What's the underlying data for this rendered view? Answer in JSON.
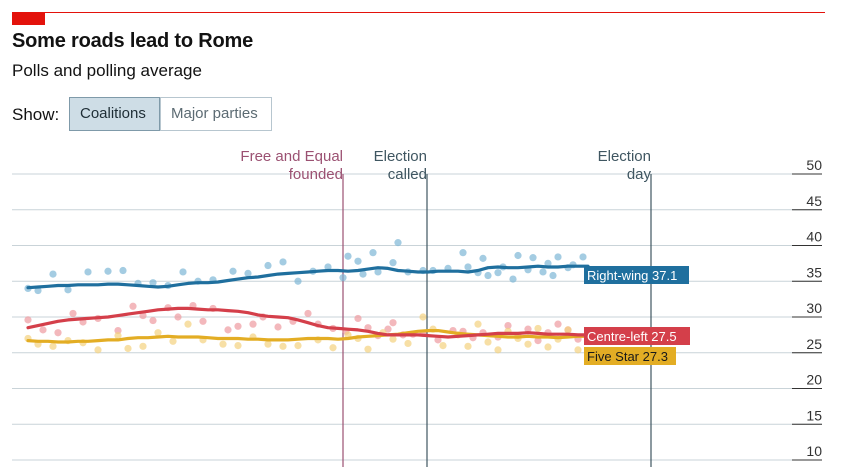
{
  "header": {
    "title": "Some roads lead to Rome",
    "subtitle": "Polls and polling average"
  },
  "controls": {
    "show_label": "Show:",
    "options": [
      "Coalitions",
      "Major parties"
    ],
    "selected": "Coalitions"
  },
  "chart_data": {
    "type": "line",
    "title": "Some roads lead to Rome",
    "subtitle": "Polls and polling average",
    "x": [
      0,
      10,
      20,
      30,
      40,
      50,
      60,
      70,
      80,
      90,
      100,
      110,
      120,
      130,
      140,
      150,
      160,
      170,
      180,
      190,
      200,
      210,
      220,
      230,
      240,
      250,
      260,
      270,
      280,
      290,
      300,
      310,
      320,
      330,
      340,
      350,
      360,
      370,
      380,
      390,
      400,
      410,
      420,
      430,
      440,
      450,
      460,
      470,
      480,
      490,
      500,
      510,
      520,
      530,
      540,
      550,
      560
    ],
    "ylim": [
      10,
      50
    ],
    "yticks": [
      10,
      15,
      20,
      25,
      30,
      35,
      40,
      45,
      50
    ],
    "grid": true,
    "events": [
      {
        "x": 315,
        "label": [
          "Free and Equal",
          "founded"
        ],
        "color": "#9b5172"
      },
      {
        "x": 399,
        "label": [
          "Election",
          "called"
        ],
        "color": "#3f5661"
      },
      {
        "x": 623,
        "label": [
          "Election",
          "day"
        ],
        "color": "#3f5661"
      }
    ],
    "series": [
      {
        "name": "Right-wing",
        "color": "#1f6f9e",
        "dot_color": "#7eb6d5",
        "end_label": "Right-wing 37.1",
        "values": [
          34.1,
          34.2,
          34.3,
          34.4,
          34.4,
          34.5,
          34.5,
          34.5,
          34.6,
          34.6,
          34.5,
          34.4,
          34.3,
          34.2,
          34.3,
          34.5,
          34.7,
          34.8,
          34.8,
          34.9,
          35.1,
          35.3,
          35.5,
          35.6,
          35.8,
          36.0,
          36.1,
          36.2,
          36.3,
          36.4,
          36.5,
          36.5,
          36.4,
          36.5,
          36.7,
          36.9,
          36.8,
          36.5,
          36.4,
          36.3,
          36.3,
          36.4,
          36.4,
          36.4,
          36.3,
          36.5,
          36.9,
          37.0,
          36.9,
          36.9,
          37.0,
          37.1,
          37.0,
          37.0,
          37.1,
          37.1,
          37.1
        ]
      },
      {
        "name": "Centre-left",
        "color": "#d43f4a",
        "dot_color": "#ee9aa0",
        "end_label": "Centre-left 27.5",
        "values": [
          28.5,
          28.8,
          29.1,
          29.4,
          29.6,
          29.7,
          29.8,
          29.9,
          30.0,
          30.2,
          30.4,
          30.6,
          30.8,
          31.0,
          31.1,
          31.2,
          31.2,
          31.1,
          31.0,
          31.0,
          30.9,
          30.8,
          30.6,
          30.3,
          30.1,
          30.0,
          29.9,
          29.6,
          29.2,
          28.8,
          28.5,
          28.4,
          28.3,
          28.2,
          28.0,
          27.7,
          27.5,
          27.5,
          27.5,
          27.5,
          27.4,
          27.3,
          27.2,
          27.3,
          27.4,
          27.5,
          27.6,
          27.7,
          27.7,
          27.7,
          27.8,
          27.7,
          27.6,
          27.6,
          27.6,
          27.5,
          27.5
        ]
      },
      {
        "name": "Five Star",
        "color": "#e3ad24",
        "dot_color": "#f4d27f",
        "end_label": "Five Star 27.3",
        "values": [
          26.7,
          26.6,
          26.6,
          26.5,
          26.5,
          26.6,
          26.6,
          26.7,
          26.8,
          26.8,
          27.0,
          27.1,
          27.1,
          27.2,
          27.3,
          27.2,
          27.2,
          27.2,
          27.1,
          27.0,
          27.0,
          27.0,
          26.9,
          26.9,
          26.8,
          26.8,
          26.8,
          26.9,
          27.0,
          27.0,
          27.0,
          26.9,
          27.0,
          27.2,
          27.3,
          27.4,
          27.5,
          27.6,
          27.8,
          28.0,
          28.1,
          28.1,
          27.9,
          27.7,
          27.6,
          27.5,
          27.4,
          27.3,
          27.2,
          27.2,
          27.3,
          27.2,
          27.2,
          27.1,
          27.2,
          27.3,
          27.3
        ]
      }
    ],
    "polls": {
      "Right-wing": [
        [
          0,
          34.0
        ],
        [
          10,
          33.7
        ],
        [
          25,
          36.0
        ],
        [
          40,
          33.8
        ],
        [
          60,
          36.3
        ],
        [
          80,
          36.4
        ],
        [
          95,
          36.5
        ],
        [
          110,
          34.7
        ],
        [
          125,
          34.8
        ],
        [
          140,
          34.4
        ],
        [
          155,
          36.3
        ],
        [
          170,
          35.0
        ],
        [
          185,
          35.2
        ],
        [
          205,
          36.4
        ],
        [
          220,
          36.1
        ],
        [
          240,
          37.2
        ],
        [
          255,
          37.7
        ],
        [
          270,
          35.0
        ],
        [
          285,
          36.4
        ],
        [
          300,
          37.0
        ],
        [
          315,
          35.5
        ],
        [
          320,
          38.5
        ],
        [
          330,
          37.8
        ],
        [
          335,
          36.0
        ],
        [
          345,
          39.0
        ],
        [
          350,
          36.3
        ],
        [
          365,
          37.6
        ],
        [
          370,
          40.4
        ],
        [
          380,
          36.3
        ],
        [
          395,
          36.5
        ],
        [
          405,
          36.5
        ],
        [
          420,
          36.8
        ],
        [
          435,
          39.0
        ],
        [
          440,
          37.0
        ],
        [
          450,
          36.2
        ],
        [
          455,
          38.2
        ],
        [
          460,
          35.8
        ],
        [
          470,
          36.2
        ],
        [
          475,
          37.0
        ],
        [
          485,
          35.3
        ],
        [
          490,
          38.6
        ],
        [
          500,
          36.6
        ],
        [
          505,
          38.3
        ],
        [
          515,
          36.3
        ],
        [
          520,
          37.5
        ],
        [
          525,
          35.8
        ],
        [
          530,
          38.4
        ],
        [
          540,
          36.9
        ],
        [
          545,
          37.3
        ],
        [
          555,
          38.4
        ],
        [
          560,
          35.1
        ]
      ],
      "Centre-left": [
        [
          0,
          29.6
        ],
        [
          15,
          28.2
        ],
        [
          30,
          27.8
        ],
        [
          45,
          30.5
        ],
        [
          55,
          29.3
        ],
        [
          70,
          29.8
        ],
        [
          90,
          28.1
        ],
        [
          105,
          31.5
        ],
        [
          115,
          30.2
        ],
        [
          125,
          29.5
        ],
        [
          140,
          31.3
        ],
        [
          150,
          30.0
        ],
        [
          165,
          31.6
        ],
        [
          175,
          29.4
        ],
        [
          185,
          31.2
        ],
        [
          200,
          28.2
        ],
        [
          210,
          28.7
        ],
        [
          225,
          29.0
        ],
        [
          235,
          30.0
        ],
        [
          250,
          28.6
        ],
        [
          265,
          29.4
        ],
        [
          280,
          30.5
        ],
        [
          290,
          29.0
        ],
        [
          305,
          28.4
        ],
        [
          318,
          28.0
        ],
        [
          330,
          29.8
        ],
        [
          340,
          28.5
        ],
        [
          350,
          27.4
        ],
        [
          360,
          28.3
        ],
        [
          365,
          29.2
        ],
        [
          375,
          27.5
        ],
        [
          385,
          27.6
        ],
        [
          395,
          27.7
        ],
        [
          410,
          26.8
        ],
        [
          425,
          28.1
        ],
        [
          435,
          28.0
        ],
        [
          445,
          27.1
        ],
        [
          455,
          27.8
        ],
        [
          470,
          27.2
        ],
        [
          480,
          28.8
        ],
        [
          490,
          27.4
        ],
        [
          500,
          28.3
        ],
        [
          510,
          26.7
        ],
        [
          520,
          27.8
        ],
        [
          530,
          29.0
        ],
        [
          540,
          28.2
        ],
        [
          550,
          26.9
        ],
        [
          560,
          27.6
        ]
      ],
      "Five Star": [
        [
          0,
          27.0
        ],
        [
          10,
          26.2
        ],
        [
          25,
          25.9
        ],
        [
          40,
          26.7
        ],
        [
          55,
          26.4
        ],
        [
          70,
          25.4
        ],
        [
          90,
          27.4
        ],
        [
          100,
          25.6
        ],
        [
          115,
          25.9
        ],
        [
          130,
          27.8
        ],
        [
          145,
          26.6
        ],
        [
          160,
          29.0
        ],
        [
          175,
          26.8
        ],
        [
          195,
          26.2
        ],
        [
          210,
          26.0
        ],
        [
          225,
          27.2
        ],
        [
          240,
          26.2
        ],
        [
          255,
          25.9
        ],
        [
          270,
          26.0
        ],
        [
          290,
          26.8
        ],
        [
          305,
          25.7
        ],
        [
          320,
          27.5
        ],
        [
          330,
          27.0
        ],
        [
          340,
          25.5
        ],
        [
          355,
          27.8
        ],
        [
          365,
          26.9
        ],
        [
          380,
          26.3
        ],
        [
          395,
          30.0
        ],
        [
          405,
          28.3
        ],
        [
          415,
          26.0
        ],
        [
          430,
          27.5
        ],
        [
          440,
          25.9
        ],
        [
          450,
          29.0
        ],
        [
          460,
          26.5
        ],
        [
          470,
          25.4
        ],
        [
          480,
          28.0
        ],
        [
          490,
          27.0
        ],
        [
          500,
          26.2
        ],
        [
          510,
          28.4
        ],
        [
          520,
          25.8
        ],
        [
          530,
          26.9
        ],
        [
          540,
          28.2
        ],
        [
          550,
          25.4
        ],
        [
          560,
          26.8
        ]
      ]
    }
  }
}
